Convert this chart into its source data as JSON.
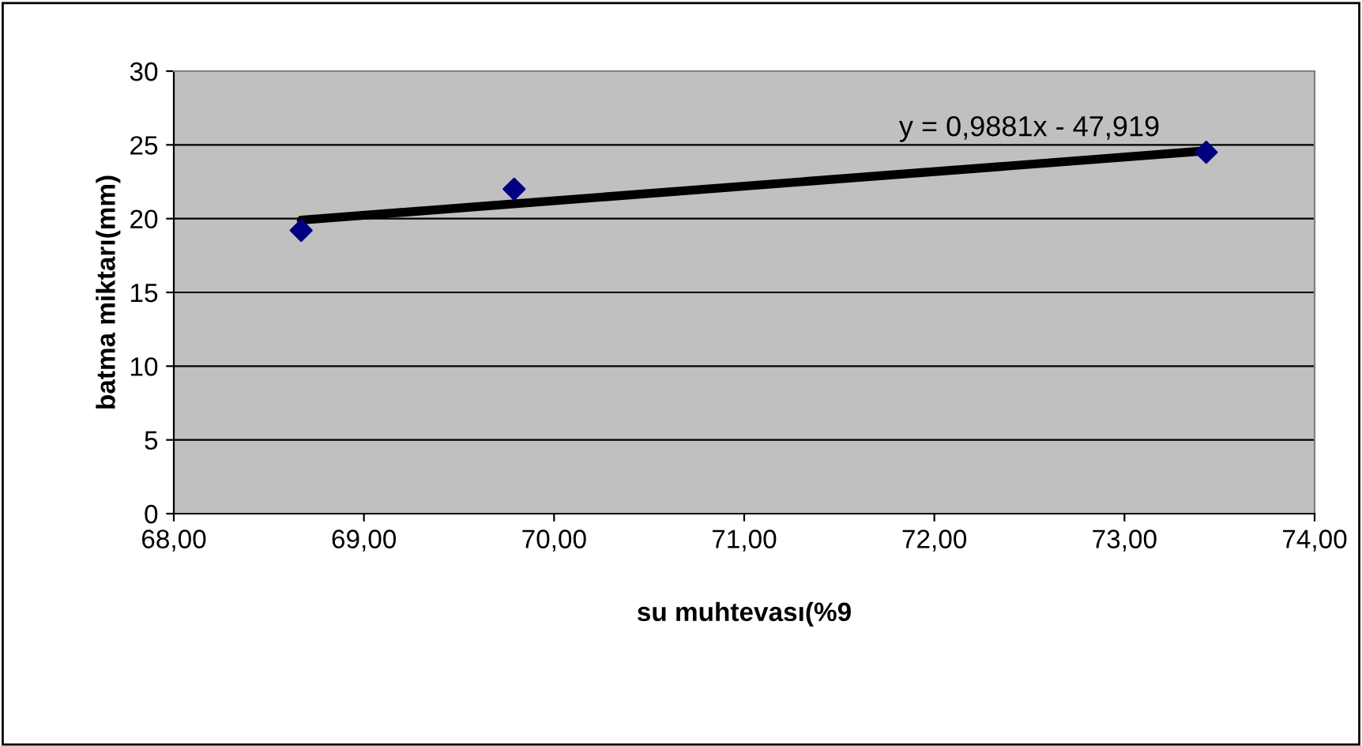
{
  "chart_data": {
    "type": "scatter",
    "xlabel": "su muhtevası(%9",
    "ylabel": "batma miktarı(mm)",
    "series": [
      {
        "color": "#000080",
        "marker": "diamond",
        "x": [
          68.67,
          69.79,
          73.43
        ],
        "values": [
          19.2,
          22.0,
          24.5
        ]
      },
      {
        "type": "line",
        "color": "#000000",
        "marker": "none",
        "x": [
          68.67,
          73.43
        ],
        "values": [
          19.9,
          24.6
        ]
      }
    ],
    "annotations": [
      "y = 0,9881x - 47,919"
    ],
    "xlim": [
      68,
      74
    ],
    "xticks": [
      {
        "value": 68,
        "label": "68,00"
      },
      {
        "value": 69,
        "label": "69,00"
      },
      {
        "value": 70,
        "label": "70,00"
      },
      {
        "value": 71,
        "label": "71,00"
      },
      {
        "value": 72,
        "label": "72,00"
      },
      {
        "value": 73,
        "label": "73,00"
      },
      {
        "value": 74,
        "label": "74,00"
      }
    ],
    "ylim": [
      0,
      30
    ],
    "yticks": [
      0,
      5,
      10,
      15,
      20,
      25,
      30
    ],
    "grid": "y"
  }
}
